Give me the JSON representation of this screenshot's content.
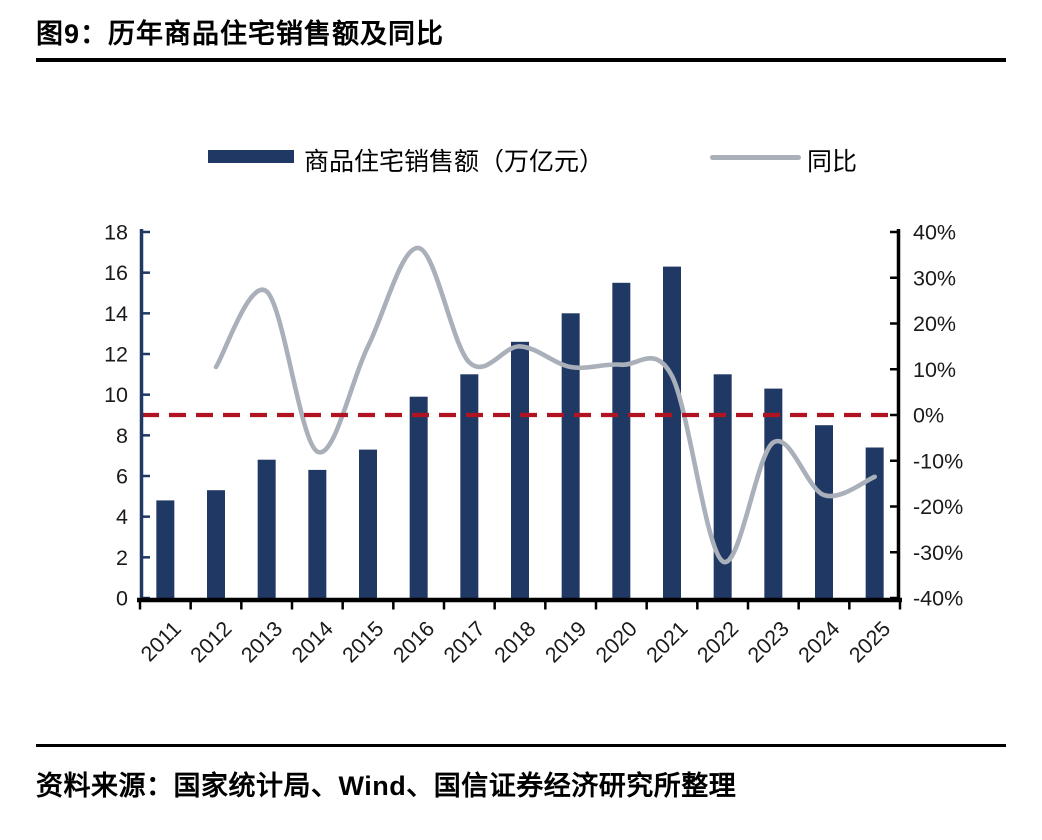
{
  "title": "图9：历年商品住宅销售额及同比",
  "legend": {
    "bar_label": "商品住宅销售额（万亿元）",
    "line_label": "同比"
  },
  "source": "资料来源：国家统计局、Wind、国信证券经济研究所整理",
  "colors": {
    "bar": "#1f3864",
    "line": "#a9b0ba",
    "zero_line": "#b01423",
    "axis_black": "#000000",
    "tick_label": "#1a1a1a"
  },
  "chart_data": {
    "type": "bar",
    "categories": [
      "2011",
      "2012",
      "2013",
      "2014",
      "2015",
      "2016",
      "2017",
      "2018",
      "2019",
      "2020",
      "2021",
      "2022",
      "2023",
      "2024",
      "2025"
    ],
    "series": [
      {
        "name": "商品住宅销售额（万亿元）",
        "type": "bar",
        "axis": "left",
        "values": [
          4.8,
          5.3,
          6.8,
          6.3,
          7.3,
          9.9,
          11.0,
          12.6,
          14.0,
          15.5,
          16.3,
          11.0,
          10.3,
          8.5,
          7.4
        ]
      },
      {
        "name": "同比",
        "type": "line",
        "axis": "right",
        "values": [
          null,
          10.5,
          27,
          -8,
          15,
          36.5,
          11.5,
          15,
          10.5,
          11,
          8.5,
          -32,
          -6,
          -17.5,
          -13.5
        ]
      }
    ],
    "left_axis": {
      "min": 0,
      "max": 18,
      "step": 2,
      "labels": [
        "0",
        "2",
        "4",
        "6",
        "8",
        "10",
        "12",
        "14",
        "16",
        "18"
      ]
    },
    "right_axis": {
      "min": -40,
      "max": 40,
      "step": 10,
      "labels": [
        "-40%",
        "-30%",
        "-20%",
        "-10%",
        "0%",
        "10%",
        "20%",
        "30%",
        "40%"
      ]
    },
    "zero_reference_line": {
      "value_right_axis": 0,
      "style": "dashed"
    },
    "grid": false,
    "legend_position": "top-center"
  }
}
